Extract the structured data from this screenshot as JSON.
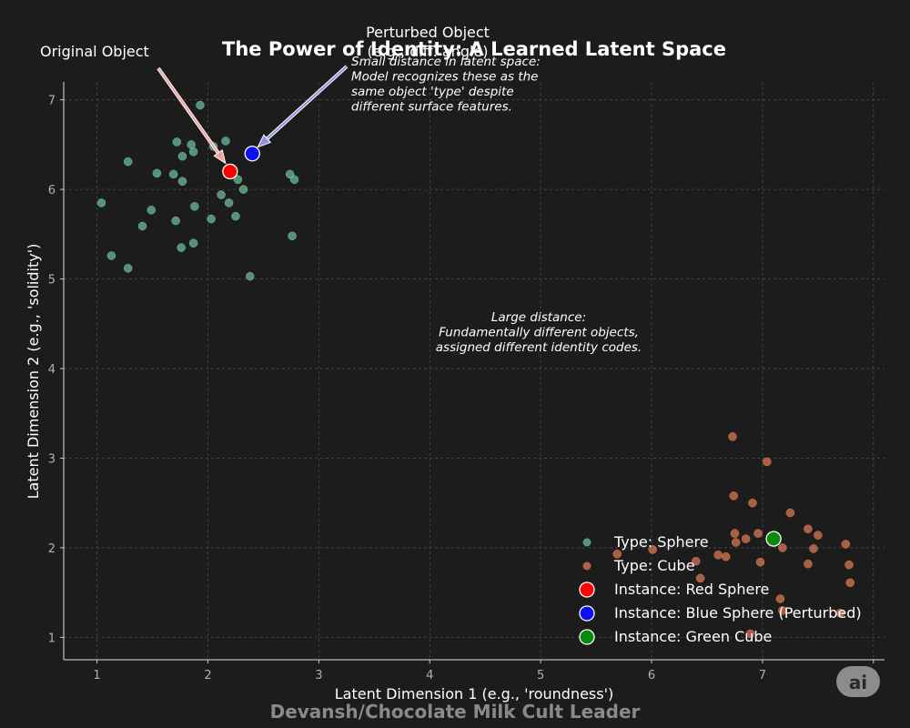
{
  "chart_data": {
    "type": "scatter",
    "title": "The Power of Identity: A Learned Latent Space",
    "xlabel": "Latent Dimension 1 (e.g., 'roundness')",
    "ylabel": "Latent Dimension 2 (e.g., 'solidity')",
    "xlim": [
      0.7,
      8.1
    ],
    "ylim": [
      0.75,
      7.2
    ],
    "xticks": [
      1,
      2,
      3,
      4,
      5,
      6,
      7,
      8
    ],
    "yticks": [
      1,
      2,
      3,
      4,
      5,
      6,
      7
    ],
    "grid": true,
    "legend_position": "bottom-right",
    "series": [
      {
        "name": "Type: Sphere",
        "legend": "Type: Sphere",
        "color": "#6fbfa0",
        "marker": "small",
        "points": [
          [
            1.04,
            5.85
          ],
          [
            1.13,
            5.26
          ],
          [
            1.28,
            6.31
          ],
          [
            1.28,
            5.12
          ],
          [
            1.41,
            5.59
          ],
          [
            1.49,
            5.77
          ],
          [
            1.54,
            6.18
          ],
          [
            1.69,
            6.17
          ],
          [
            1.71,
            5.65
          ],
          [
            1.72,
            6.53
          ],
          [
            1.76,
            5.35
          ],
          [
            1.77,
            6.09
          ],
          [
            1.77,
            6.37
          ],
          [
            1.85,
            6.5
          ],
          [
            1.87,
            6.42
          ],
          [
            1.87,
            5.4
          ],
          [
            1.88,
            5.81
          ],
          [
            1.93,
            6.94
          ],
          [
            2.03,
            5.67
          ],
          [
            2.05,
            6.48
          ],
          [
            2.12,
            5.94
          ],
          [
            2.16,
            6.54
          ],
          [
            2.19,
            5.85
          ],
          [
            2.25,
            5.7
          ],
          [
            2.27,
            6.11
          ],
          [
            2.32,
            6.0
          ],
          [
            2.38,
            5.03
          ],
          [
            2.74,
            6.17
          ],
          [
            2.76,
            5.48
          ],
          [
            2.78,
            6.11
          ]
        ]
      },
      {
        "name": "Type: Cube",
        "legend": "Type: Cube",
        "color": "#e07a55",
        "marker": "small",
        "points": [
          [
            5.69,
            1.93
          ],
          [
            6.01,
            1.98
          ],
          [
            6.4,
            1.85
          ],
          [
            6.44,
            1.66
          ],
          [
            6.6,
            1.92
          ],
          [
            6.67,
            1.9
          ],
          [
            6.73,
            3.24
          ],
          [
            6.74,
            2.58
          ],
          [
            6.75,
            2.16
          ],
          [
            6.76,
            2.06
          ],
          [
            6.85,
            2.1
          ],
          [
            6.89,
            1.04
          ],
          [
            6.91,
            2.5
          ],
          [
            6.96,
            2.16
          ],
          [
            6.98,
            1.84
          ],
          [
            7.04,
            2.96
          ],
          [
            7.16,
            1.43
          ],
          [
            7.18,
            2.0
          ],
          [
            7.18,
            1.3
          ],
          [
            7.25,
            2.39
          ],
          [
            7.41,
            2.21
          ],
          [
            7.41,
            1.82
          ],
          [
            7.46,
            1.99
          ],
          [
            7.5,
            2.14
          ],
          [
            7.7,
            1.27
          ],
          [
            7.75,
            2.04
          ],
          [
            7.78,
            1.81
          ],
          [
            7.79,
            1.61
          ]
        ]
      },
      {
        "name": "Instance: Red Sphere",
        "legend": "Instance: Red Sphere",
        "color": "#ff0000",
        "marker": "large",
        "points": [
          [
            2.2,
            6.2
          ]
        ]
      },
      {
        "name": "Instance: Blue Sphere (Perturbed)",
        "legend": "Instance: Blue Sphere (Perturbed)",
        "color": "#0a10ee",
        "marker": "large",
        "points": [
          [
            2.4,
            6.4
          ]
        ]
      },
      {
        "name": "Instance: Green Cube",
        "legend": "Instance: Green Cube",
        "color": "#0a8a0a",
        "marker": "large",
        "points": [
          [
            7.1,
            2.1
          ]
        ]
      }
    ],
    "annotations": [
      {
        "name": "original-object-label",
        "text": "Original Object",
        "target": [
          2.2,
          6.2
        ],
        "arrow_color": "#f0a0a0"
      },
      {
        "name": "perturbed-object-label",
        "lines": [
          "Perturbed Object",
          "(e.g., diff. angle)"
        ],
        "target": [
          2.4,
          6.4
        ],
        "arrow_color": "#9090e0"
      }
    ],
    "notes": [
      {
        "name": "small-distance-note",
        "lines": [
          "Small distance in latent space:",
          "Model recognizes these as the",
          "same object 'type' despite",
          "different surface features."
        ]
      },
      {
        "name": "large-distance-note",
        "lines": [
          "Large distance:",
          "Fundamentally different objects,",
          "assigned different identity codes."
        ]
      }
    ]
  },
  "watermark": "Devansh/Chocolate Milk Cult Leader",
  "badge": "ai"
}
